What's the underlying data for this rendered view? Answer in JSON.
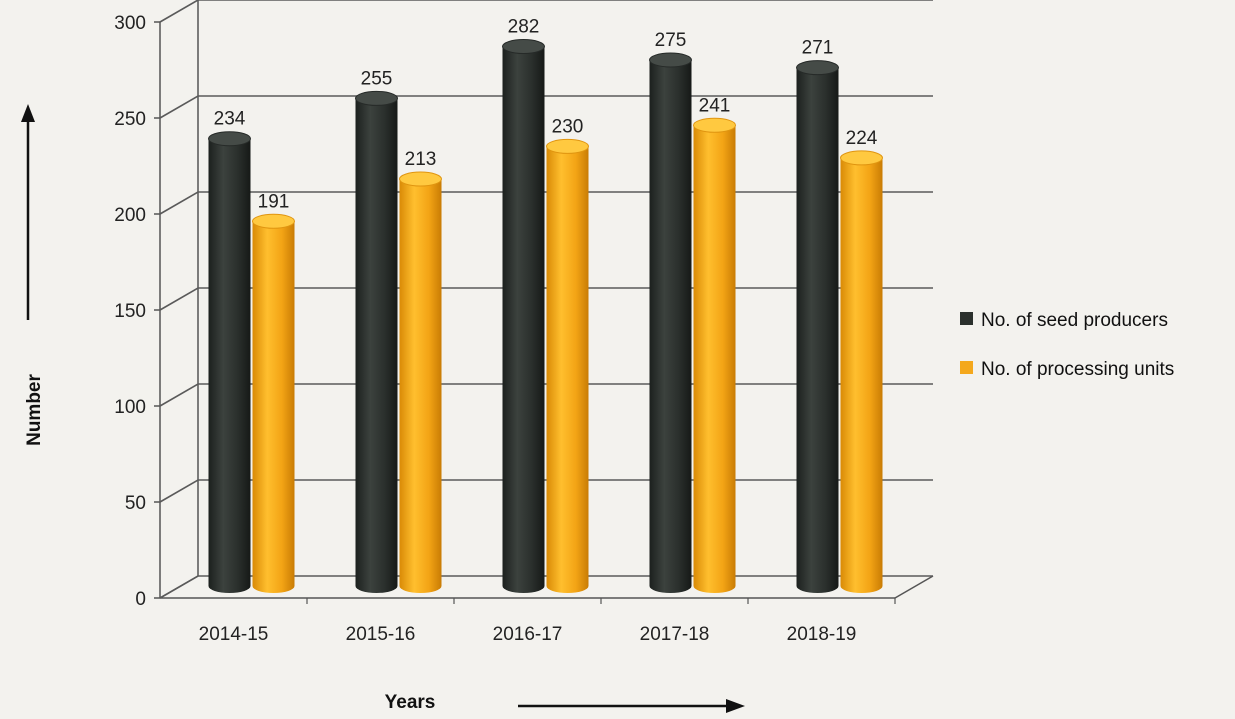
{
  "chart_data": {
    "type": "bar",
    "categories": [
      "2014-15",
      "2015-16",
      "2016-17",
      "2017-18",
      "2018-19"
    ],
    "series": [
      {
        "name": "No. of seed producers",
        "values": [
          234,
          255,
          282,
          275,
          271
        ],
        "color": "#2b302d"
      },
      {
        "name": "No. of processing units",
        "values": [
          191,
          213,
          230,
          241,
          224
        ],
        "color": "#f4a81c"
      }
    ],
    "title": "",
    "xlabel": "Years",
    "ylabel": "Number",
    "ylim": [
      0,
      300
    ],
    "yticks": [
      "0",
      "50",
      "100",
      "150",
      "200",
      "250",
      "300"
    ],
    "grid": true,
    "legend_position": "right",
    "style": "3d-cylinder"
  }
}
